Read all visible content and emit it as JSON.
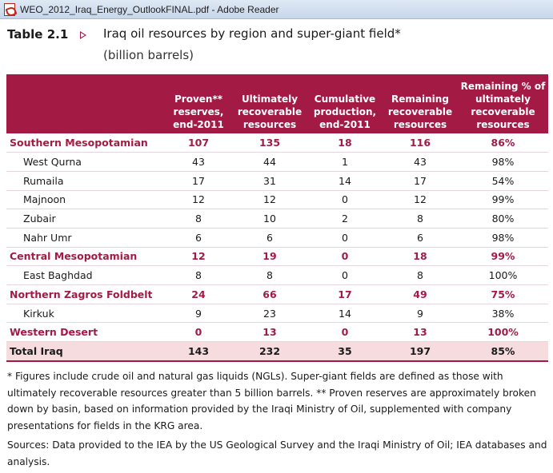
{
  "window": {
    "title": "WEO_2012_Iraq_Energy_OutlookFINAL.pdf - Adobe Reader",
    "app_icon": "pdf-icon"
  },
  "heading": {
    "table_number": "Table 2.1",
    "arrow_icon": "triangle-right-icon",
    "title": "Iraq oil resources by region and super-giant field*",
    "units": "(billion barrels)"
  },
  "colors": {
    "header_bg": "#a31b45",
    "region_text": "#a31b45",
    "total_bg": "#f6dcdf"
  },
  "table": {
    "columns": [
      "",
      "Proven** reserves, end-2011",
      "Ultimately recoverable resources",
      "Cumulative production, end-2011",
      "Remaining recoverable resources",
      "Remaining % of ultimately recoverable resources"
    ],
    "rows": [
      {
        "kind": "region",
        "cells": [
          "Southern Mesopotamian",
          "107",
          "135",
          "18",
          "116",
          "86%"
        ]
      },
      {
        "kind": "field",
        "cells": [
          "West Qurna",
          "43",
          "44",
          "1",
          "43",
          "98%"
        ]
      },
      {
        "kind": "field",
        "cells": [
          "Rumaila",
          "17",
          "31",
          "14",
          "17",
          "54%"
        ]
      },
      {
        "kind": "field",
        "cells": [
          "Majnoon",
          "12",
          "12",
          "0",
          "12",
          "99%"
        ]
      },
      {
        "kind": "field",
        "cells": [
          "Zubair",
          "8",
          "10",
          "2",
          "8",
          "80%"
        ]
      },
      {
        "kind": "field",
        "cells": [
          "Nahr Umr",
          "6",
          "6",
          "0",
          "6",
          "98%"
        ]
      },
      {
        "kind": "region",
        "cells": [
          "Central Mesopotamian",
          "12",
          "19",
          "0",
          "18",
          "99%"
        ]
      },
      {
        "kind": "field",
        "cells": [
          "East Baghdad",
          "8",
          "8",
          "0",
          "8",
          "100%"
        ]
      },
      {
        "kind": "region",
        "cells": [
          "Northern Zagros Foldbelt",
          "24",
          "66",
          "17",
          "49",
          "75%"
        ]
      },
      {
        "kind": "field",
        "cells": [
          "Kirkuk",
          "9",
          "23",
          "14",
          "9",
          "38%"
        ]
      },
      {
        "kind": "region",
        "cells": [
          "Western Desert",
          "0",
          "13",
          "0",
          "13",
          "100%"
        ]
      },
      {
        "kind": "total",
        "cells": [
          "Total Iraq",
          "143",
          "232",
          "35",
          "197",
          "85%"
        ]
      }
    ]
  },
  "footnote": "* Figures include crude oil and natural gas liquids (NGLs). Super-giant fields are defined as those with ultimately recoverable resources greater than 5 billion barrels. ** Proven reserves are approximately broken down by basin, based on information provided by the Iraqi Ministry of Oil, supplemented with company presentations for fields in the KRG area.",
  "sources": "Sources: Data provided to the IEA by the US Geological Survey and the Iraqi Ministry of Oil; IEA databases and analysis."
}
